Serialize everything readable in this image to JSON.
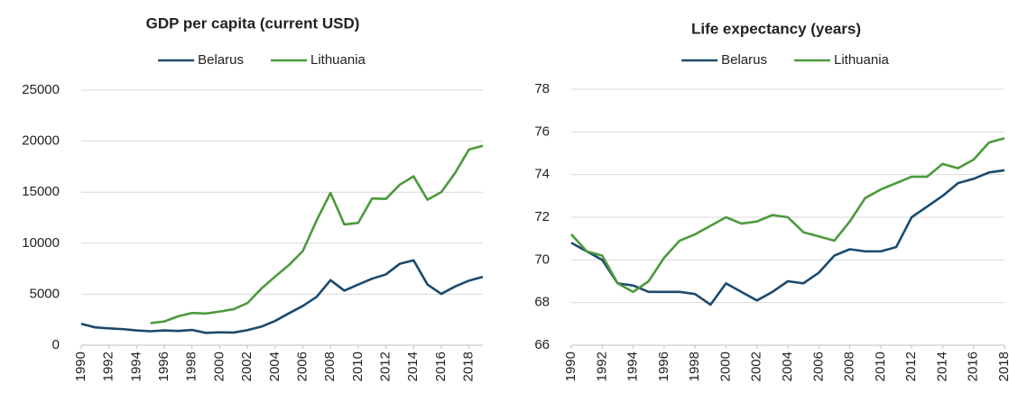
{
  "chart_data": [
    {
      "type": "line",
      "title": "GDP per capita (current USD)",
      "x": [
        1990,
        1991,
        1992,
        1993,
        1994,
        1995,
        1996,
        1997,
        1998,
        1999,
        2000,
        2001,
        2002,
        2003,
        2004,
        2005,
        2006,
        2007,
        2008,
        2009,
        2010,
        2011,
        2012,
        2013,
        2014,
        2015,
        2016,
        2017,
        2018,
        2019
      ],
      "series": [
        {
          "name": "Belarus",
          "color": "#1b4a6e",
          "values": [
            2100,
            1750,
            1650,
            1580,
            1450,
            1370,
            1450,
            1400,
            1500,
            1210,
            1270,
            1240,
            1480,
            1820,
            2380,
            3130,
            3850,
            4740,
            6380,
            5350,
            5950,
            6520,
            6940,
            7980,
            8320,
            5950,
            5030,
            5760,
            6330,
            6700
          ]
        },
        {
          "name": "Lithuania",
          "color": "#4c9a3c",
          "values": [
            null,
            null,
            null,
            null,
            null,
            2170,
            2330,
            2840,
            3160,
            3110,
            3300,
            3530,
            4130,
            5540,
            6730,
            7860,
            9230,
            12240,
            14930,
            11830,
            11990,
            14380,
            14340,
            15730,
            16550,
            14260,
            15010,
            16890,
            19180,
            19550
          ]
        }
      ],
      "xlim": [
        1990,
        2019
      ],
      "xticks": [
        1990,
        1992,
        1994,
        1996,
        1998,
        2000,
        2002,
        2004,
        2006,
        2008,
        2010,
        2012,
        2014,
        2016,
        2018
      ],
      "ylim": [
        0,
        25000
      ],
      "yticks": [
        0,
        5000,
        10000,
        15000,
        20000,
        25000
      ],
      "grid": true,
      "legend": "top"
    },
    {
      "type": "line",
      "title": "Life expectancy (years)",
      "x": [
        1990,
        1991,
        1992,
        1993,
        1994,
        1995,
        1996,
        1997,
        1998,
        1999,
        2000,
        2001,
        2002,
        2003,
        2004,
        2005,
        2006,
        2007,
        2008,
        2009,
        2010,
        2011,
        2012,
        2013,
        2014,
        2015,
        2016,
        2017,
        2018
      ],
      "series": [
        {
          "name": "Belarus",
          "color": "#1b4a6e",
          "values": [
            70.8,
            70.4,
            70.0,
            68.9,
            68.8,
            68.5,
            68.5,
            68.5,
            68.4,
            67.9,
            68.9,
            68.5,
            68.1,
            68.5,
            69.0,
            68.9,
            69.4,
            70.2,
            70.5,
            70.4,
            70.4,
            70.6,
            72.0,
            72.5,
            73.0,
            73.6,
            73.8,
            74.1,
            74.2
          ]
        },
        {
          "name": "Lithuania",
          "color": "#4c9a3c",
          "values": [
            71.2,
            70.4,
            70.2,
            68.9,
            68.5,
            69.0,
            70.1,
            70.9,
            71.2,
            71.6,
            72.0,
            71.7,
            71.8,
            72.1,
            72.0,
            71.3,
            71.1,
            70.9,
            71.8,
            72.9,
            73.3,
            73.6,
            73.9,
            73.9,
            74.5,
            74.3,
            74.7,
            75.5,
            75.7
          ]
        }
      ],
      "xlim": [
        1990,
        2018
      ],
      "xticks": [
        1990,
        1992,
        1994,
        1996,
        1998,
        2000,
        2002,
        2004,
        2006,
        2008,
        2010,
        2012,
        2014,
        2016,
        2018
      ],
      "ylim": [
        66,
        78
      ],
      "yticks": [
        66,
        68,
        70,
        72,
        74,
        76,
        78
      ],
      "grid": true,
      "legend": "top"
    }
  ]
}
